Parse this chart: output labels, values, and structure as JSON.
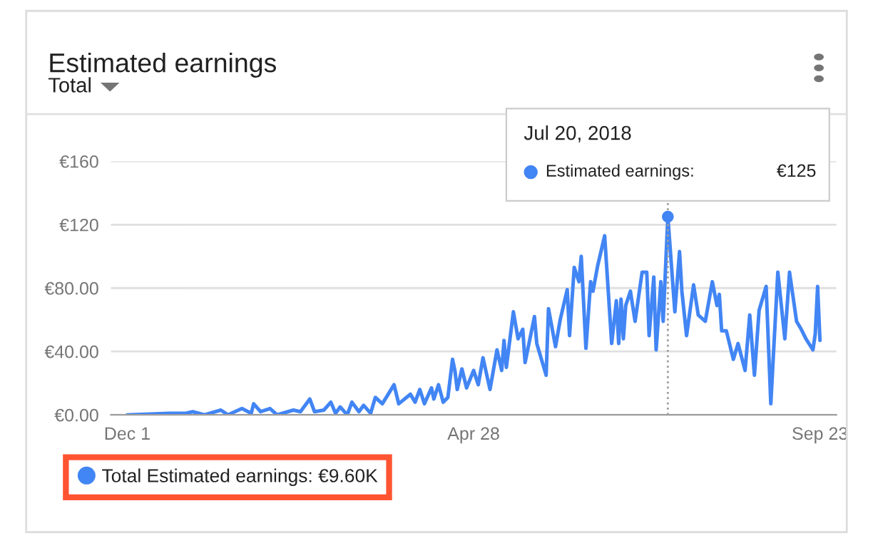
{
  "chart_data": {
    "type": "line",
    "title": "Estimated earnings",
    "subtitle": "Total",
    "x": [
      "2017-12-01",
      "2017-12-19",
      "2017-12-26",
      "2017-12-29",
      "2018-01-03",
      "2018-01-10",
      "2018-01-13",
      "2018-01-19",
      "2018-01-23",
      "2018-01-24",
      "2018-01-27",
      "2018-01-31",
      "2018-02-03",
      "2018-02-10",
      "2018-02-13",
      "2018-02-17",
      "2018-02-19",
      "2018-02-23",
      "2018-02-26",
      "2018-02-28",
      "2018-03-02",
      "2018-03-05",
      "2018-03-07",
      "2018-03-10",
      "2018-03-12",
      "2018-03-15",
      "2018-03-17",
      "2018-03-20",
      "2018-03-25",
      "2018-03-27",
      "2018-04-01",
      "2018-04-03",
      "2018-04-05",
      "2018-04-07",
      "2018-04-10",
      "2018-04-11",
      "2018-04-13",
      "2018-04-15",
      "2018-04-17",
      "2018-04-19",
      "2018-04-20",
      "2018-04-21",
      "2018-04-23",
      "2018-04-25",
      "2018-04-28",
      "2018-04-30",
      "2018-05-02",
      "2018-05-05",
      "2018-05-08",
      "2018-05-10",
      "2018-05-11",
      "2018-05-12",
      "2018-05-15",
      "2018-05-17",
      "2018-05-19",
      "2018-05-20",
      "2018-05-24",
      "2018-05-25",
      "2018-05-29",
      "2018-05-30",
      "2018-06-02",
      "2018-06-04",
      "2018-06-07",
      "2018-06-08",
      "2018-06-10",
      "2018-06-12",
      "2018-06-13",
      "2018-06-15",
      "2018-06-17",
      "2018-06-18",
      "2018-06-20",
      "2018-06-23",
      "2018-06-26",
      "2018-06-28",
      "2018-06-29",
      "2018-06-30",
      "2018-07-01",
      "2018-07-02",
      "2018-07-04",
      "2018-07-06",
      "2018-07-09",
      "2018-07-11",
      "2018-07-12",
      "2018-07-14",
      "2018-07-15",
      "2018-07-17",
      "2018-07-18",
      "2018-07-20",
      "2018-07-23",
      "2018-07-25",
      "2018-07-26",
      "2018-07-28",
      "2018-07-31",
      "2018-08-02",
      "2018-08-05",
      "2018-08-08",
      "2018-08-10",
      "2018-08-11",
      "2018-08-12",
      "2018-08-14",
      "2018-08-17",
      "2018-08-19",
      "2018-08-22",
      "2018-08-24",
      "2018-08-26",
      "2018-08-28",
      "2018-08-31",
      "2018-09-02",
      "2018-09-05",
      "2018-09-08",
      "2018-09-10",
      "2018-09-13",
      "2018-09-15",
      "2018-09-17",
      "2018-09-20",
      "2018-09-21",
      "2018-09-22",
      "2018-09-23"
    ],
    "series": [
      {
        "name": "Total Estimated earnings: €9.60K",
        "color": "#4285f4",
        "values": [
          0,
          1,
          1,
          2,
          0,
          3,
          0,
          4,
          1,
          7,
          2,
          4,
          0,
          3,
          2,
          10,
          2,
          3,
          8,
          1,
          5,
          0,
          8,
          2,
          6,
          1,
          11,
          7,
          19,
          7,
          13,
          8,
          16,
          7,
          17,
          10,
          19,
          8,
          11,
          35,
          28,
          16,
          29,
          17,
          28,
          19,
          36,
          16,
          41,
          28,
          47,
          30,
          65,
          48,
          54,
          33,
          62,
          45,
          25,
          67,
          43,
          60,
          79,
          50,
          93,
          84,
          100,
          42,
          84,
          78,
          94,
          113,
          45,
          72,
          45,
          73,
          48,
          69,
          78,
          59,
          90,
          90,
          50,
          87,
          41,
          84,
          59,
          125,
          65,
          103,
          78,
          50,
          82,
          63,
          59,
          84,
          69,
          76,
          53,
          53,
          35,
          45,
          28,
          63,
          25,
          66,
          81,
          7,
          90,
          48,
          90,
          59,
          54,
          48,
          41,
          51,
          81,
          47
        ]
      }
    ],
    "xlim": [
      "2017-11-24",
      "2018-09-30"
    ],
    "xticks": [
      {
        "value": "2017-12-01",
        "label": "Dec 1"
      },
      {
        "value": "2018-04-28",
        "label": "Apr 28"
      },
      {
        "value": "2018-09-23",
        "label": "Sep 23"
      }
    ],
    "ylim": [
      0,
      160
    ],
    "yticks": [
      {
        "value": 0,
        "label": "€0.00"
      },
      {
        "value": 40,
        "label": "€40.00"
      },
      {
        "value": 80,
        "label": "€80.00"
      },
      {
        "value": 120,
        "label": "€120"
      },
      {
        "value": 160,
        "label": "€160"
      }
    ],
    "grid": "y",
    "legend": "bottom left",
    "marker": "none",
    "line_style": "solid",
    "ref_lines": [
      {
        "axis": "x",
        "value": "2018-07-20",
        "color": "#9e9e9e",
        "line_style": "dotted"
      }
    ],
    "annotations": [
      "Jul 20, 2018",
      "Estimated earnings:",
      "€125"
    ]
  }
}
